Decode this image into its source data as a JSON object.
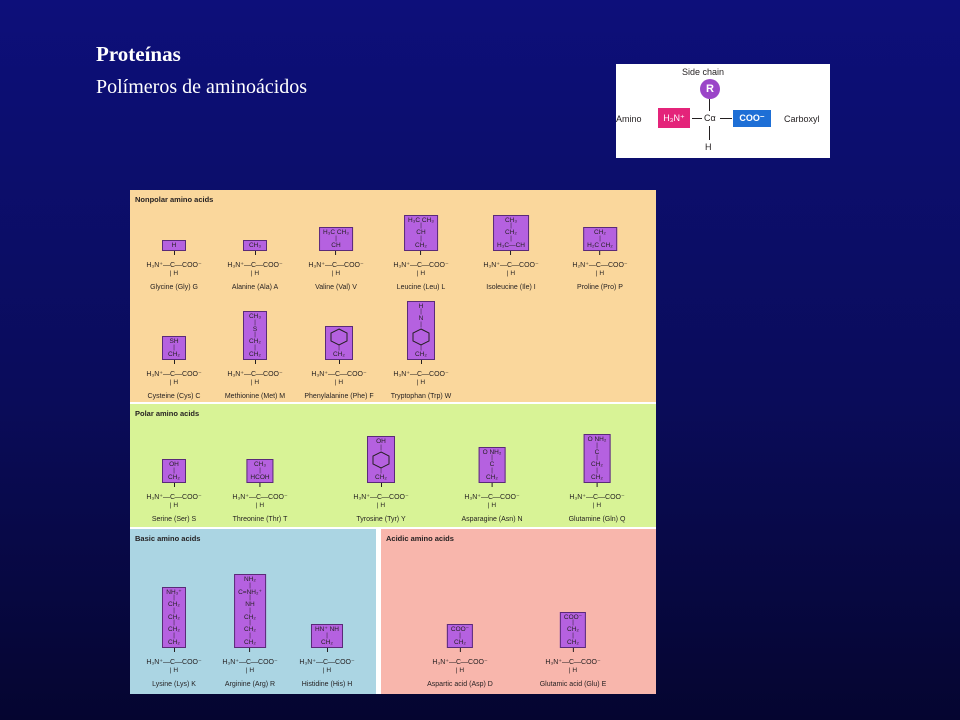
{
  "slide": {
    "title": "Proteínas",
    "subtitle": "Polímeros de aminoácidos"
  },
  "generic_aa": {
    "side_chain_label": "Side chain",
    "r_label": "R",
    "amino_label": "Amino",
    "amino_group": "H₃N⁺",
    "alpha_carbon": "Cα",
    "carboxyl_group": "COO⁻",
    "carboxyl_label": "Carboxyl",
    "hydrogen": "H"
  },
  "backbone": {
    "formula": "H₃N⁺—C—COO⁻",
    "hydrogen": "H"
  },
  "groups": {
    "nonpolar": {
      "title": "Nonpolar amino acids",
      "items": [
        {
          "name": "Glycine (Gly) G",
          "side": [
            "H"
          ]
        },
        {
          "name": "Alanine (Ala) A",
          "side": [
            "CH₃"
          ]
        },
        {
          "name": "Valine (Val) V",
          "side": [
            "H₃C   CH₃",
            "CH"
          ]
        },
        {
          "name": "Leucine (Leu) L",
          "side": [
            "H₃C   CH₃",
            "CH",
            "CH₂"
          ]
        },
        {
          "name": "Isoleucine (Ile) I",
          "side": [
            "CH₃",
            "CH₂",
            "H₃C—CH"
          ]
        },
        {
          "name": "Proline (Pro) P",
          "side": [
            "CH₂",
            "H₂C   CH₂"
          ],
          "backbone": "H₂N⁺—C—COO⁻"
        },
        {
          "name": "Cysteine (Cys) C",
          "side": [
            "SH",
            "CH₂"
          ]
        },
        {
          "name": "Methionine (Met) M",
          "side": [
            "CH₃",
            "S",
            "CH₂",
            "CH₂"
          ]
        },
        {
          "name": "Phenylalanine (Phe) F",
          "side": [
            "CH₂"
          ]
        },
        {
          "name": "Tryptophan (Trp) W",
          "side": [
            "H",
            "N",
            "CH₂"
          ]
        }
      ]
    },
    "polar": {
      "title": "Polar amino acids",
      "items": [
        {
          "name": "Serine (Ser) S",
          "side": [
            "OH",
            "CH₂"
          ]
        },
        {
          "name": "Threonine (Thr) T",
          "side": [
            "CH₃",
            "HCOH"
          ]
        },
        {
          "name": "Tyrosine (Tyr) Y",
          "side": [
            "OH",
            "CH₂"
          ]
        },
        {
          "name": "Asparagine (Asn) N",
          "side": [
            "O   NH₂",
            "C",
            "CH₂"
          ]
        },
        {
          "name": "Glutamine (Gln) Q",
          "side": [
            "O   NH₂",
            "C",
            "CH₂",
            "CH₂"
          ]
        }
      ]
    },
    "basic": {
      "title": "Basic amino acids",
      "items": [
        {
          "name": "Lysine (Lys) K",
          "side": [
            "NH₃⁺",
            "CH₂",
            "CH₂",
            "CH₂",
            "CH₂"
          ]
        },
        {
          "name": "Arginine (Arg) R",
          "side": [
            "NH₂",
            "C=NH₂⁺",
            "NH",
            "CH₂",
            "CH₂",
            "CH₂"
          ]
        },
        {
          "name": "Histidine (His) H",
          "side": [
            "HN⁺   NH",
            "CH₂"
          ]
        }
      ]
    },
    "acidic": {
      "title": "Acidic amino acids",
      "items": [
        {
          "name": "Aspartic acid (Asp) D",
          "side": [
            "COO⁻",
            "CH₂"
          ]
        },
        {
          "name": "Glutamic acid (Glu) E",
          "side": [
            "COO⁻",
            "CH₂",
            "CH₂"
          ]
        }
      ]
    }
  }
}
